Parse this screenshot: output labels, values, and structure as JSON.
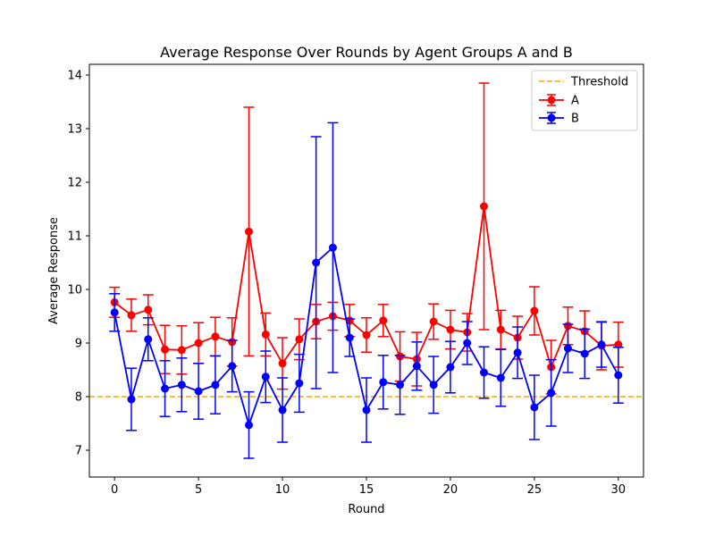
{
  "chart_data": {
    "type": "line",
    "title": "Average Response Over Rounds by Agent Groups A and B",
    "xlabel": "Round",
    "ylabel": "Average Response",
    "xlim": [
      -1.5,
      31.5
    ],
    "ylim": [
      6.5,
      14.2
    ],
    "xticks": [
      0,
      5,
      10,
      15,
      20,
      25,
      30
    ],
    "yticks": [
      7,
      8,
      9,
      10,
      11,
      12,
      13,
      14
    ],
    "grid": false,
    "legend_position": "top-right",
    "x": [
      0,
      1,
      2,
      3,
      4,
      5,
      6,
      7,
      8,
      9,
      10,
      11,
      12,
      13,
      14,
      15,
      16,
      17,
      18,
      19,
      20,
      21,
      22,
      23,
      24,
      25,
      26,
      27,
      28,
      29,
      30
    ],
    "threshold": {
      "name": "Threshold",
      "value": 8.0,
      "color": "#ffa500"
    },
    "series": [
      {
        "name": "A",
        "color": "#ff0000",
        "values": [
          9.76,
          9.52,
          9.62,
          8.88,
          8.87,
          9.0,
          9.12,
          9.02,
          11.08,
          9.16,
          8.62,
          9.07,
          9.4,
          9.5,
          9.42,
          9.15,
          9.42,
          8.75,
          8.7,
          9.4,
          9.25,
          9.2,
          11.55,
          9.25,
          9.1,
          9.6,
          8.55,
          9.32,
          9.22,
          8.95,
          8.97
        ],
        "errors": [
          0.28,
          0.3,
          0.28,
          0.45,
          0.45,
          0.38,
          0.36,
          0.45,
          2.32,
          0.4,
          0.48,
          0.38,
          0.32,
          0.26,
          0.3,
          0.32,
          0.3,
          0.46,
          0.5,
          0.33,
          0.36,
          0.35,
          2.3,
          0.36,
          0.4,
          0.45,
          0.5,
          0.35,
          0.38,
          0.45,
          0.42
        ]
      },
      {
        "name": "B",
        "color": "#0000ff",
        "values": [
          9.57,
          7.95,
          9.07,
          8.15,
          8.22,
          8.1,
          8.22,
          8.57,
          7.47,
          8.37,
          7.75,
          8.25,
          10.5,
          10.78,
          9.1,
          7.75,
          8.27,
          8.22,
          8.57,
          8.22,
          8.55,
          9.0,
          8.45,
          8.35,
          8.82,
          7.8,
          8.07,
          8.9,
          8.8,
          8.97,
          8.4
        ],
        "errors": [
          0.35,
          0.58,
          0.4,
          0.52,
          0.5,
          0.52,
          0.54,
          0.48,
          0.62,
          0.48,
          0.6,
          0.54,
          2.35,
          2.33,
          0.35,
          0.6,
          0.5,
          0.55,
          0.45,
          0.53,
          0.48,
          0.4,
          0.48,
          0.53,
          0.48,
          0.6,
          0.62,
          0.45,
          0.46,
          0.42,
          0.52
        ]
      }
    ]
  }
}
